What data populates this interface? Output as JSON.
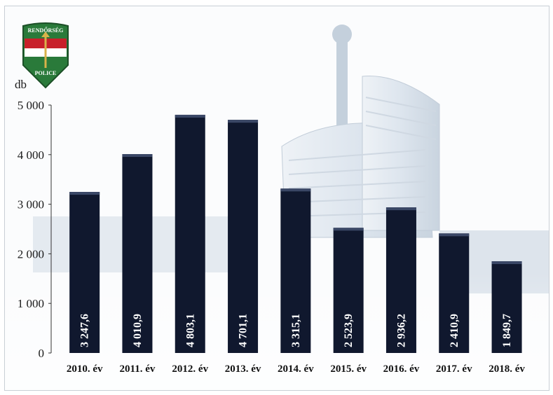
{
  "logo": {
    "top_text": "RENDŐRSÉG",
    "bottom_text": "POLICE",
    "colors": {
      "red": "#c8202a",
      "green": "#2a7a3a",
      "white": "#ffffff",
      "gold": "#d8b24a"
    }
  },
  "chart_data": {
    "type": "bar",
    "ylabel": "db",
    "xlabel": "",
    "title": "",
    "ylim": [
      0,
      5000
    ],
    "yticks": [
      0,
      1000,
      2000,
      3000,
      4000,
      5000
    ],
    "ytick_labels": [
      "0",
      "1 000",
      "2 000",
      "3 000",
      "4 000",
      "5 000"
    ],
    "categories": [
      "2010. év",
      "2011. év",
      "2012. év",
      "2013. év",
      "2014. év",
      "2015. év",
      "2016. év",
      "2017. év",
      "2018. év"
    ],
    "values": [
      3247.6,
      4010.9,
      4803.1,
      4701.1,
      3315.1,
      2523.9,
      2936.2,
      2410.9,
      1849.7
    ],
    "value_labels": [
      "3 247,6",
      "4 010,9",
      "4 803,1",
      "4 701,1",
      "3 315,1",
      "2 523,9",
      "2 936,2",
      "2 410,9",
      "1 849,7"
    ],
    "bar_color": "#10182e",
    "grid": false
  }
}
